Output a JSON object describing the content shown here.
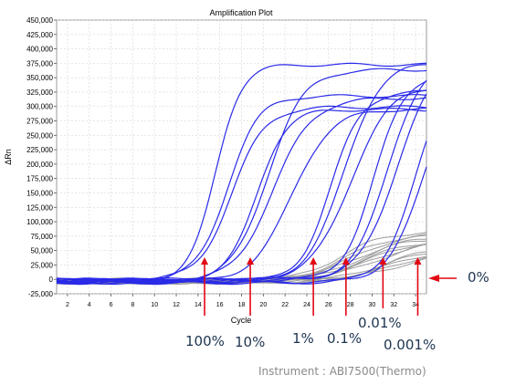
{
  "chart_data": {
    "type": "line",
    "title": "Amplification Plot",
    "xlabel": "Cycle",
    "ylabel": "ΔRn",
    "xlim": [
      1,
      35
    ],
    "ylim": [
      -25000,
      450000
    ],
    "x_ticks": [
      2,
      4,
      6,
      8,
      10,
      12,
      14,
      16,
      18,
      20,
      22,
      24,
      26,
      28,
      30,
      32,
      34
    ],
    "y_ticks": [
      {
        "v": -25000,
        "label": "-25,000"
      },
      {
        "v": 0,
        "label": "0"
      },
      {
        "v": 25000,
        "label": "25,000"
      },
      {
        "v": 50000,
        "label": "50,000"
      },
      {
        "v": 75000,
        "label": "75,000"
      },
      {
        "v": 100000,
        "label": "100,000"
      },
      {
        "v": 125000,
        "label": "125,000"
      },
      {
        "v": 150000,
        "label": "150,000"
      },
      {
        "v": 175000,
        "label": "175,000"
      },
      {
        "v": 200000,
        "label": "200,000"
      },
      {
        "v": 225000,
        "label": "225,000"
      },
      {
        "v": 250000,
        "label": "250,000"
      },
      {
        "v": 275000,
        "label": "275,000"
      },
      {
        "v": 300000,
        "label": "300,000"
      },
      {
        "v": 325000,
        "label": "325,000"
      },
      {
        "v": 350000,
        "label": "350,000"
      },
      {
        "v": 375000,
        "label": "375,000"
      },
      {
        "v": 400000,
        "label": "400,000"
      },
      {
        "v": 425000,
        "label": "425,000"
      },
      {
        "v": 450000,
        "label": "450,000"
      }
    ],
    "grid": true,
    "series": [
      {
        "color": "#2a2ae8",
        "mid": 15.6,
        "k": 0.85,
        "plateau": 375000
      },
      {
        "color": "#2a2ae8",
        "mid": 16.7,
        "k": 0.7,
        "plateau": 320000
      },
      {
        "color": "#2a2ae8",
        "mid": 17.1,
        "k": 0.65,
        "plateau": 300000
      },
      {
        "color": "#2a2ae8",
        "mid": 19.4,
        "k": 0.75,
        "plateau": 295000
      },
      {
        "color": "#2a2ae8",
        "mid": 20.4,
        "k": 0.6,
        "plateau": 370000
      },
      {
        "color": "#2a2ae8",
        "mid": 20.9,
        "k": 0.55,
        "plateau": 320000
      },
      {
        "color": "#2a2ae8",
        "mid": 22.6,
        "k": 0.55,
        "plateau": 300000
      },
      {
        "color": "#2a2ae8",
        "mid": 26.2,
        "k": 0.7,
        "plateau": 330000
      },
      {
        "color": "#2a2ae8",
        "mid": 27.4,
        "k": 0.6,
        "plateau": 380000
      },
      {
        "color": "#2a2ae8",
        "mid": 28.0,
        "k": 0.55,
        "plateau": 340000
      },
      {
        "color": "#2a2ae8",
        "mid": 30.2,
        "k": 0.7,
        "plateau": 360000
      },
      {
        "color": "#2a2ae8",
        "mid": 31.4,
        "k": 0.65,
        "plateau": 380000
      },
      {
        "color": "#2a2ae8",
        "mid": 32.2,
        "k": 0.6,
        "plateau": 380000
      },
      {
        "color": "#2a2ae8",
        "mid": 34.1,
        "k": 0.65,
        "plateau": 380000
      },
      {
        "color": "#2a2ae8",
        "mid": 35.0,
        "k": 0.6,
        "plateau": 400000
      },
      {
        "color": "#9c9c9c",
        "mid": 27.0,
        "k": 0.45,
        "plateau": 90000
      },
      {
        "color": "#9c9c9c",
        "mid": 27.5,
        "k": 0.43,
        "plateau": 85000
      },
      {
        "color": "#9c9c9c",
        "mid": 28.0,
        "k": 0.45,
        "plateau": 82000
      },
      {
        "color": "#9c9c9c",
        "mid": 28.4,
        "k": 0.42,
        "plateau": 78000
      },
      {
        "color": "#9c9c9c",
        "mid": 28.8,
        "k": 0.45,
        "plateau": 76000
      },
      {
        "color": "#9c9c9c",
        "mid": 29.2,
        "k": 0.42,
        "plateau": 72000
      },
      {
        "color": "#9c9c9c",
        "mid": 29.6,
        "k": 0.45,
        "plateau": 70000
      },
      {
        "color": "#9c9c9c",
        "mid": 30.0,
        "k": 0.42,
        "plateau": 68000
      },
      {
        "color": "#9c9c9c",
        "mid": 30.4,
        "k": 0.45,
        "plateau": 66000
      },
      {
        "color": "#9c9c9c",
        "mid": 30.8,
        "k": 0.42,
        "plateau": 62000
      },
      {
        "color": "#9c9c9c",
        "mid": 31.2,
        "k": 0.45,
        "plateau": 60000
      },
      {
        "color": "#9c9c9c",
        "mid": 31.6,
        "k": 0.42,
        "plateau": 58000
      },
      {
        "color": "#9c9c9c",
        "mid": 32.0,
        "k": 0.45,
        "plateau": 55000
      },
      {
        "color": "#9c9c9c",
        "mid": 32.4,
        "k": 0.42,
        "plateau": 52000
      }
    ]
  },
  "annotations": {
    "marker_color": "#e30613",
    "arrows": [
      {
        "cycle": 14.6,
        "label": "100%"
      },
      {
        "cycle": 18.8,
        "label": "10%"
      },
      {
        "cycle": 24.6,
        "label": "1%"
      },
      {
        "cycle": 27.6,
        "label": "0.1%"
      },
      {
        "cycle": 31.0,
        "label": "0.01%"
      },
      {
        "cycle": 34.2,
        "label": "0.001%"
      }
    ],
    "zero_label": "0%"
  },
  "footer": "Instrument : ABI7500(Thermo)"
}
